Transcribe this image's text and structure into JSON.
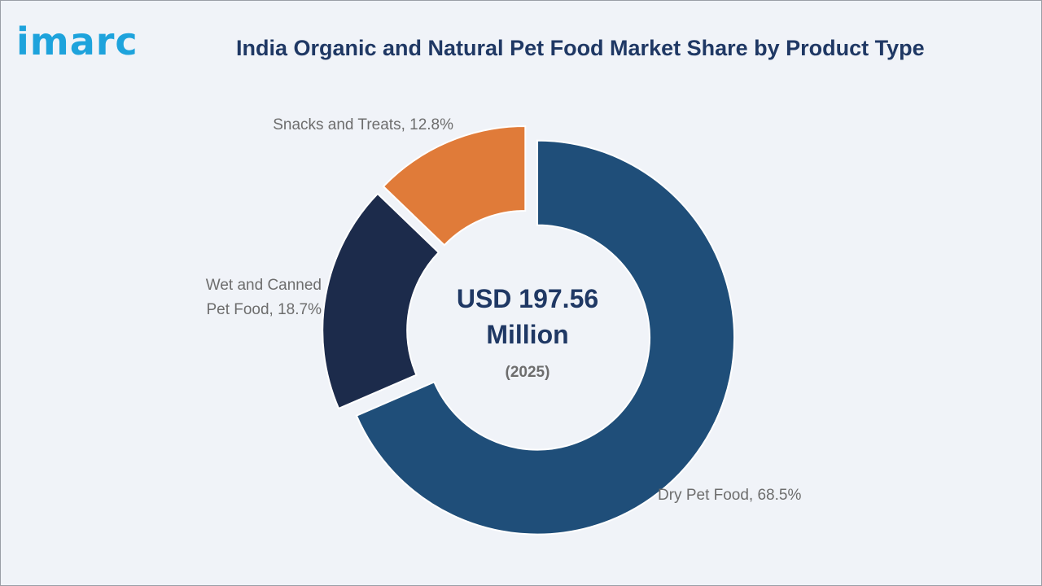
{
  "brand": {
    "logo_text": "imarc",
    "logo_color": "#1ea3dc"
  },
  "chart_data": {
    "type": "pie",
    "title": "India Organic and Natural Pet Food Market Share by Product Type",
    "center_text": {
      "value_line1": "USD 197.56",
      "value_line2": "Million",
      "year": "(2025)"
    },
    "slices": [
      {
        "name": "Dry Pet Food",
        "value": 68.5,
        "label": "Dry Pet Food, 68.5%",
        "color": "#1f4e79"
      },
      {
        "name": "Wet and Canned Pet Food",
        "value": 18.7,
        "label_lines": [
          "Wet and Canned",
          "Pet Food, 18.7%"
        ],
        "color": "#1c2b4b"
      },
      {
        "name": "Snacks and Treats",
        "value": 12.8,
        "label": "Snacks and Treats, 12.8%",
        "color": "#e07b39"
      }
    ]
  }
}
